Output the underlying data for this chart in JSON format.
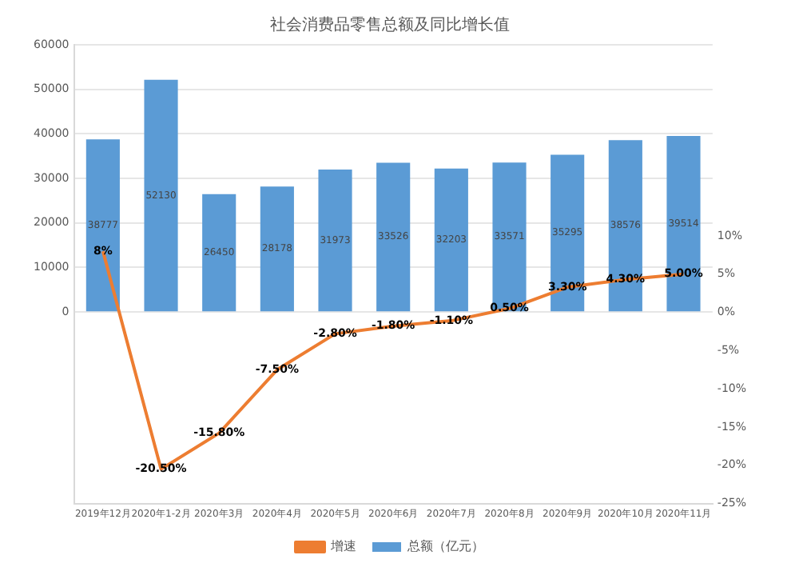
{
  "chart_data": {
    "type": "bar",
    "title": "社会消费品零售总额及同比增长值",
    "categories": [
      "2019年12月",
      "2020年1-2月",
      "2020年3月",
      "2020年4月",
      "2020年5月",
      "2020年6月",
      "2020年7月",
      "2020年8月",
      "2020年9月",
      "2020年10月",
      "2020年11月"
    ],
    "series": [
      {
        "name": "总额（亿元）",
        "color": "#5b9bd5",
        "values": [
          38777,
          52130,
          26450,
          28178,
          31973,
          33526,
          32203,
          33571,
          35295,
          38576,
          39514
        ],
        "value_labels": [
          "38777",
          "52130",
          "26450",
          "28178",
          "31973",
          "33526",
          "32203",
          "33571",
          "35295",
          "38576",
          "39514"
        ]
      },
      {
        "name": "增速",
        "type": "line",
        "axis": "y2",
        "color": "#ed7d31",
        "values": [
          8,
          -20.5,
          -15.8,
          -7.5,
          -2.8,
          -1.8,
          -1.1,
          0.5,
          3.3,
          4.3,
          5.0
        ],
        "value_labels": [
          "8%",
          "-20.50%",
          "-15.80%",
          "-7.50%",
          "-2.80%",
          "-1.80%",
          "-1.10%",
          "0.50%",
          "3.30%",
          "4.30%",
          "5.00%"
        ]
      }
    ],
    "ylim": [
      -43000,
      60000
    ],
    "yticks": [
      0,
      10000,
      20000,
      30000,
      40000,
      50000,
      60000
    ],
    "y2lim": [
      -25,
      35
    ],
    "y2ticks": [
      {
        "value": -25,
        "label": "-25%"
      },
      {
        "value": -20,
        "label": "-20%"
      },
      {
        "value": -15,
        "label": "-15%"
      },
      {
        "value": -10,
        "label": "-10%"
      },
      {
        "value": -5,
        "label": "-5%"
      },
      {
        "value": 0,
        "label": "0%"
      },
      {
        "value": 5,
        "label": "5%"
      },
      {
        "value": 10,
        "label": "10%"
      }
    ],
    "grid": "y",
    "legend": "bottom",
    "marker": "none",
    "line_style": "solid"
  }
}
